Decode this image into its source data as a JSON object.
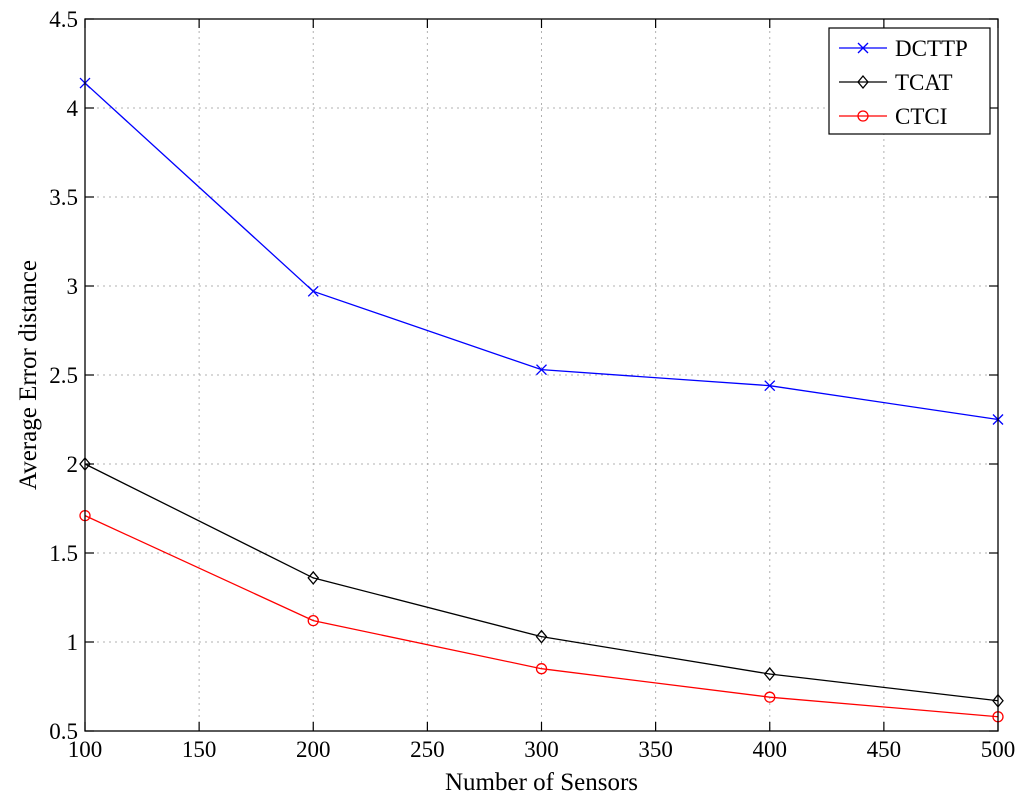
{
  "chart_data": {
    "type": "line",
    "xlabel": "Number of Sensors",
    "ylabel": "Average Error distance",
    "xlim": [
      100,
      500
    ],
    "ylim": [
      0.5,
      4.5
    ],
    "x_ticks": [
      100,
      150,
      200,
      250,
      300,
      350,
      400,
      450,
      500
    ],
    "y_ticks": [
      0.5,
      1,
      1.5,
      2,
      2.5,
      3,
      3.5,
      4,
      4.5
    ],
    "x_tick_labels": [
      "100",
      "150",
      "200",
      "250",
      "300",
      "350",
      "400",
      "450",
      "500"
    ],
    "y_tick_labels": [
      "0.5",
      "1",
      "1.5",
      "2",
      "2.5",
      "3",
      "3.5",
      "4",
      "4.5"
    ],
    "grid": true,
    "legend_position": "top-right",
    "x": [
      100,
      200,
      300,
      400,
      500
    ],
    "series": [
      {
        "name": "DCTTP",
        "color": "#0000ff",
        "marker": "x",
        "values": [
          4.14,
          2.97,
          2.53,
          2.44,
          2.25
        ]
      },
      {
        "name": "TCAT",
        "color": "#000000",
        "marker": "diamond",
        "values": [
          2.0,
          1.36,
          1.03,
          0.82,
          0.67
        ]
      },
      {
        "name": "CTCI",
        "color": "#ff0000",
        "marker": "circle",
        "values": [
          1.71,
          1.12,
          0.85,
          0.69,
          0.58
        ]
      }
    ]
  }
}
